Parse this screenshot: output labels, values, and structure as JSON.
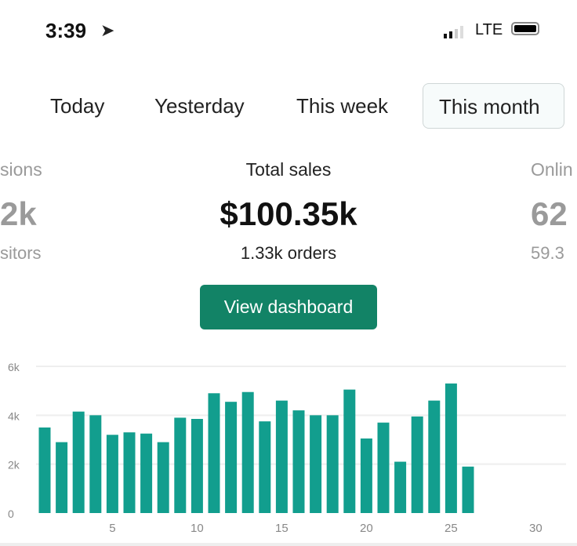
{
  "status_bar": {
    "time": "3:39",
    "location_icon": "location-arrow-icon",
    "network": "LTE",
    "signal_bars": 2,
    "battery": "full"
  },
  "tabs": [
    {
      "label": "Today"
    },
    {
      "label": "Yesterday"
    },
    {
      "label": "This week"
    },
    {
      "label": "This month",
      "selected": true
    }
  ],
  "metrics": {
    "left": {
      "label": "sions",
      "value": "2k",
      "sub": "sitors"
    },
    "center": {
      "label": "Total sales",
      "value": "$100.35k",
      "sub": "1.33k orders"
    },
    "right": {
      "label": "Onlin",
      "value": "62",
      "sub": "59.3"
    }
  },
  "view_dashboard_label": "View dashboard",
  "colors": {
    "bar": "#129e8e",
    "button": "#128366"
  },
  "chart_data": {
    "type": "bar",
    "x": [
      1,
      2,
      3,
      4,
      5,
      6,
      7,
      8,
      9,
      10,
      11,
      12,
      13,
      14,
      15,
      16,
      17,
      18,
      19,
      20,
      21,
      22,
      23,
      24,
      25,
      26
    ],
    "values": [
      3500,
      2900,
      4150,
      4000,
      3200,
      3300,
      3250,
      2900,
      3900,
      3850,
      4900,
      4550,
      4950,
      3750,
      4600,
      4200,
      4000,
      4000,
      5050,
      3050,
      3700,
      2100,
      3950,
      4600,
      5300,
      1900
    ],
    "xlim": [
      1,
      30
    ],
    "ylim": [
      0,
      6000
    ],
    "y_ticks": [
      "0",
      "2k",
      "4k",
      "6k"
    ],
    "x_ticks": [
      "5",
      "10",
      "15",
      "20",
      "25",
      "30"
    ],
    "grid": true
  }
}
